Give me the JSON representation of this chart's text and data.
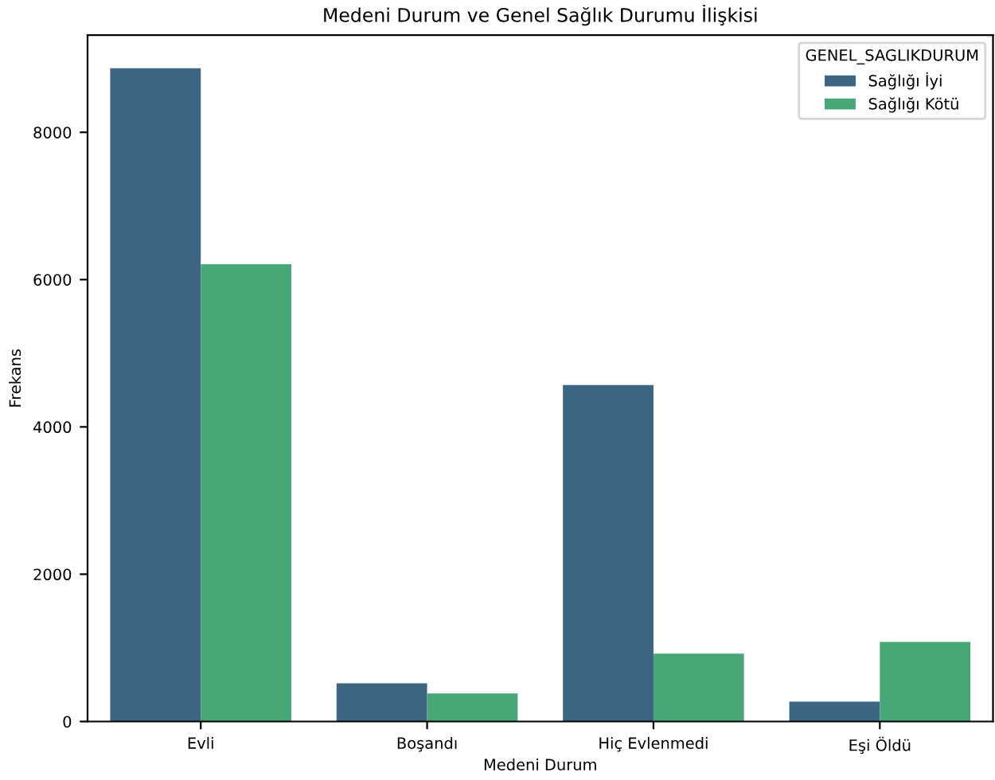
{
  "chart_data": {
    "type": "bar",
    "title": "Medeni Durum ve Genel Sağlık Durumu İlişkisi",
    "xlabel": "Medeni Durum",
    "ylabel": "Frekans",
    "legend_title": "GENEL_SAGLIKDURUM",
    "categories": [
      "Evli",
      "Boşandı",
      "Hiç Evlenmedi",
      "Eşi Öldü"
    ],
    "series": [
      {
        "name": "Sağlığı İyi",
        "color": "#3d6481",
        "values": [
          8870,
          520,
          4570,
          270
        ]
      },
      {
        "name": "Sağlığı Kötü",
        "color": "#47a776",
        "values": [
          6210,
          380,
          920,
          1080
        ]
      }
    ],
    "ylim": [
      0,
      9320
    ],
    "yticks": [
      0,
      2000,
      4000,
      6000,
      8000
    ],
    "grid": false,
    "legend": "top right"
  }
}
